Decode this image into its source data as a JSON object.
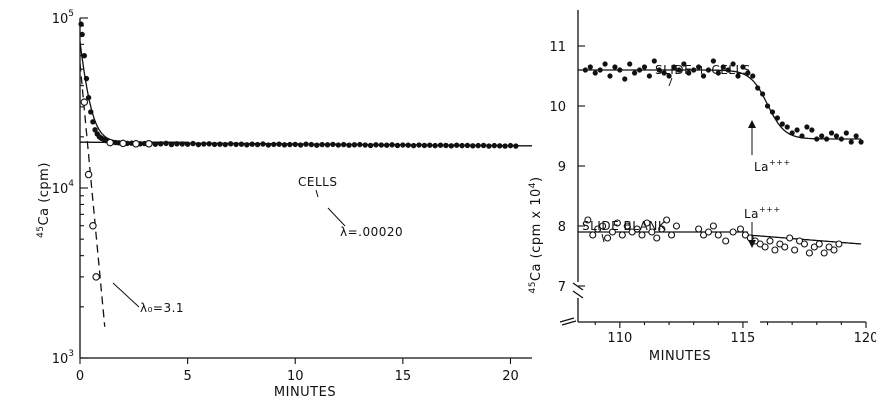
{
  "chart_data": [
    {
      "type": "scatter",
      "xlabel": "MINUTES",
      "ylabel_iso": "45",
      "ylabel_main": "Ca (cpm)",
      "yscale": "log",
      "xlim": [
        0,
        21
      ],
      "ylim": [
        1000,
        100000
      ],
      "xticks": [
        "0",
        "5",
        "10",
        "15",
        "20"
      ],
      "yticks": [
        {
          "value": 100000,
          "base": "10",
          "exp": "5"
        },
        {
          "value": 10000,
          "base": "10",
          "exp": "4"
        },
        {
          "value": 1000,
          "base": "10",
          "exp": "3"
        }
      ],
      "annotations": {
        "cells": "CELLS",
        "lambda_cells": "λ=.00020",
        "lambda_0": "λ₀=3.1"
      },
      "series": [
        {
          "name": "CELLS",
          "marker": "filled",
          "x": [
            0.05,
            0.1,
            0.2,
            0.3,
            0.4,
            0.5,
            0.6,
            0.7,
            0.8,
            0.9,
            1.0,
            1.1,
            1.2,
            1.35,
            1.5,
            1.65,
            1.8,
            2.0,
            2.2,
            2.4,
            2.6,
            2.8,
            3.0,
            3.25,
            3.5,
            3.75,
            4.0,
            4.25,
            4.5,
            4.75,
            5.0,
            5.25,
            5.5,
            5.75,
            6.0,
            6.25,
            6.5,
            6.75,
            7.0,
            7.25,
            7.5,
            7.75,
            8.0,
            8.25,
            8.5,
            8.75,
            9.0,
            9.25,
            9.5,
            9.75,
            10.0,
            10.25,
            10.5,
            10.75,
            11.0,
            11.25,
            11.5,
            11.75,
            12.0,
            12.25,
            12.5,
            12.75,
            13.0,
            13.25,
            13.5,
            13.75,
            14.0,
            14.25,
            14.5,
            14.75,
            15.0,
            15.25,
            15.5,
            15.75,
            16.0,
            16.25,
            16.5,
            16.75,
            17.0,
            17.25,
            17.5,
            17.75,
            18.0,
            18.25,
            18.5,
            18.75,
            19.0,
            19.25,
            19.5,
            19.75,
            20.0,
            20.25
          ],
          "y": [
            92000,
            80000,
            60000,
            44000,
            34000,
            28000,
            24500,
            22000,
            20800,
            20000,
            19600,
            19300,
            19000,
            18800,
            18600,
            18500,
            18450,
            18400,
            18300,
            18350,
            18300,
            18200,
            18250,
            18300,
            18100,
            18200,
            18300,
            18000,
            18200,
            18150,
            18100,
            18250,
            18000,
            18150,
            18200,
            18050,
            18100,
            18000,
            18200,
            18050,
            18100,
            17950,
            18100,
            18000,
            18150,
            17900,
            18050,
            18100,
            17950,
            18000,
            18050,
            17900,
            18100,
            18000,
            17850,
            18000,
            17950,
            18050,
            17900,
            18000,
            17850,
            17950,
            18000,
            17900,
            17800,
            17950,
            17900,
            17850,
            17950,
            17800,
            17900,
            17850,
            17750,
            17900,
            17800,
            17850,
            17750,
            17850,
            17800,
            17700,
            17850,
            17750,
            17800,
            17700,
            17750,
            17800,
            17650,
            17750,
            17700,
            17650,
            17750,
            17650
          ]
        },
        {
          "name": "λ₀=3.1",
          "marker": "open",
          "x": [
            0.2,
            0.4,
            0.6,
            0.75,
            1.4,
            2.0,
            2.6,
            3.2
          ],
          "y": [
            32000,
            12000,
            6000,
            3000,
            18500,
            18300,
            18200,
            18200
          ]
        }
      ],
      "lines": [
        {
          "type": "exp_decay",
          "name": "fast",
          "from": 0,
          "to": 1.15,
          "y0": 54000,
          "rate": 3.1
        },
        {
          "type": "sum",
          "name": "total",
          "from": 0,
          "to": 5,
          "a": 54000,
          "k": 3.1,
          "b": 18600,
          "k2": 0.0002
        },
        {
          "type": "flat",
          "name": "cells",
          "from": 0,
          "to": 21,
          "y0": 18600,
          "y1": 17700
        }
      ]
    },
    {
      "type": "scatter",
      "xlabel": "MINUTES",
      "ylabel_iso": "45",
      "ylabel_main": "Ca (cpm x 10",
      "ylabel_exp": "4",
      "ylabel_close": ")",
      "xlim": [
        108.3,
        120
      ],
      "ylim": [
        6.4,
        11.6
      ],
      "xticks": [
        "110",
        "115",
        "120"
      ],
      "yticks": [
        "7",
        "8",
        "9",
        "10",
        "11"
      ],
      "annotations": {
        "slide_cells": "SLIDE + CELLS",
        "slide_blank": "SLIDE BLANK",
        "la_upper": "La",
        "la_upper_sup": "+++",
        "la_lower": "La",
        "la_lower_sup": "+++"
      },
      "series": [
        {
          "name": "SLIDE + CELLS",
          "marker": "filled",
          "x": [
            108.6,
            108.8,
            109.0,
            109.2,
            109.4,
            109.6,
            109.8,
            110.0,
            110.2,
            110.4,
            110.6,
            110.8,
            111.0,
            111.2,
            111.4,
            111.6,
            111.8,
            112.0,
            112.2,
            112.4,
            112.6,
            112.8,
            113.0,
            113.2,
            113.4,
            113.6,
            113.8,
            114.0,
            114.2,
            114.4,
            114.6,
            114.8,
            115.0,
            115.2,
            115.4,
            115.6,
            115.8,
            116.0,
            116.2,
            116.4,
            116.6,
            116.8,
            117.0,
            117.2,
            117.4,
            117.6,
            117.8,
            118.0,
            118.2,
            118.4,
            118.6,
            118.8,
            119.0,
            119.2,
            119.4,
            119.6,
            119.8
          ],
          "y": [
            10.6,
            10.65,
            10.55,
            10.6,
            10.7,
            10.5,
            10.65,
            10.6,
            10.45,
            10.7,
            10.55,
            10.6,
            10.65,
            10.5,
            10.75,
            10.6,
            10.55,
            10.5,
            10.65,
            10.6,
            10.7,
            10.55,
            10.6,
            10.65,
            10.5,
            10.6,
            10.75,
            10.55,
            10.65,
            10.6,
            10.7,
            10.5,
            10.65,
            10.55,
            10.5,
            10.3,
            10.2,
            10.0,
            9.9,
            9.8,
            9.7,
            9.65,
            9.55,
            9.6,
            9.5,
            9.65,
            9.6,
            9.45,
            9.5,
            9.45,
            9.55,
            9.5,
            9.45,
            9.55,
            9.4,
            9.5,
            9.4
          ]
        },
        {
          "name": "SLIDE BLANK",
          "marker": "open",
          "x": [
            108.7,
            108.9,
            109.1,
            109.3,
            109.5,
            109.7,
            109.9,
            110.1,
            110.3,
            110.5,
            110.7,
            110.9,
            111.1,
            111.3,
            111.5,
            111.7,
            111.9,
            112.1,
            112.3,
            113.2,
            113.4,
            113.6,
            113.8,
            114.0,
            114.3,
            114.6,
            114.9,
            115.1,
            115.3,
            115.5,
            115.7,
            115.9,
            116.1,
            116.3,
            116.5,
            116.7,
            116.9,
            117.1,
            117.3,
            117.5,
            117.7,
            117.9,
            118.1,
            118.3,
            118.5,
            118.7,
            118.9
          ],
          "y": [
            8.1,
            7.85,
            7.95,
            8.0,
            7.8,
            7.9,
            8.05,
            7.85,
            8.0,
            7.9,
            7.95,
            7.85,
            8.05,
            7.9,
            7.8,
            7.95,
            8.1,
            7.85,
            8.0,
            7.95,
            7.85,
            7.9,
            8.0,
            7.85,
            7.75,
            7.9,
            7.95,
            7.85,
            7.8,
            7.75,
            7.7,
            7.65,
            7.75,
            7.6,
            7.7,
            7.65,
            7.8,
            7.6,
            7.75,
            7.7,
            7.55,
            7.65,
            7.7,
            7.55,
            7.65,
            7.6,
            7.7
          ]
        }
      ],
      "lines": [
        {
          "type": "sigmoid",
          "name": "cells-fit",
          "from": 108.3,
          "to": 119.8,
          "hi": 10.6,
          "lo": 9.45,
          "mid": 116.0,
          "w": 0.35
        },
        {
          "type": "linear",
          "name": "blank-left",
          "from": 108.3,
          "to": 115.2,
          "y0": 7.9,
          "y1": 7.9
        },
        {
          "type": "linear",
          "name": "blank-right",
          "from": 115.2,
          "to": 119.8,
          "y0": 7.85,
          "y1": 7.7
        }
      ]
    }
  ]
}
